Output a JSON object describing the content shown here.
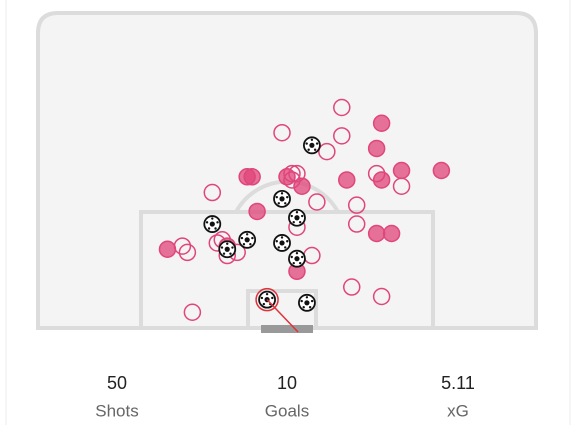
{
  "chart_data": {
    "type": "shotmap",
    "xlim": [
      0,
      100
    ],
    "ylim": [
      0,
      100
    ],
    "series": [
      {
        "style": "hollow",
        "color": "#e0457b",
        "points": [
          {
            "x": 61,
            "y": 70
          },
          {
            "x": 49,
            "y": 62
          },
          {
            "x": 61,
            "y": 61
          },
          {
            "x": 58,
            "y": 56
          },
          {
            "x": 51,
            "y": 49
          },
          {
            "x": 52,
            "y": 49
          },
          {
            "x": 51,
            "y": 47
          },
          {
            "x": 35,
            "y": 43
          },
          {
            "x": 56,
            "y": 40
          },
          {
            "x": 64,
            "y": 39
          },
          {
            "x": 64,
            "y": 33
          },
          {
            "x": 52,
            "y": 32
          },
          {
            "x": 29,
            "y": 26
          },
          {
            "x": 30,
            "y": 24
          },
          {
            "x": 36,
            "y": 27
          },
          {
            "x": 37,
            "y": 28
          },
          {
            "x": 38,
            "y": 23
          },
          {
            "x": 55,
            "y": 23
          },
          {
            "x": 73,
            "y": 45
          },
          {
            "x": 68,
            "y": 49
          },
          {
            "x": 63,
            "y": 13
          },
          {
            "x": 69,
            "y": 10
          },
          {
            "x": 31,
            "y": 5
          },
          {
            "x": 40,
            "y": 24
          }
        ]
      },
      {
        "style": "filled",
        "color": "#e0457b",
        "points": [
          {
            "x": 69,
            "y": 65
          },
          {
            "x": 68,
            "y": 57
          },
          {
            "x": 73,
            "y": 50
          },
          {
            "x": 81,
            "y": 50
          },
          {
            "x": 62,
            "y": 47
          },
          {
            "x": 69,
            "y": 47
          },
          {
            "x": 42,
            "y": 48
          },
          {
            "x": 43,
            "y": 48
          },
          {
            "x": 53,
            "y": 45
          },
          {
            "x": 44,
            "y": 37
          },
          {
            "x": 68,
            "y": 30
          },
          {
            "x": 71,
            "y": 30
          },
          {
            "x": 26,
            "y": 25
          },
          {
            "x": 52,
            "y": 18
          },
          {
            "x": 50,
            "y": 48
          },
          {
            "x": 38,
            "y": 26
          }
        ]
      },
      {
        "style": "ball",
        "color": "#111111",
        "points": [
          {
            "x": 55,
            "y": 58
          },
          {
            "x": 49,
            "y": 41
          },
          {
            "x": 35,
            "y": 33
          },
          {
            "x": 52,
            "y": 35
          },
          {
            "x": 42,
            "y": 28
          },
          {
            "x": 38,
            "y": 25
          },
          {
            "x": 49,
            "y": 27
          },
          {
            "x": 52,
            "y": 22
          },
          {
            "x": 46,
            "y": 9
          },
          {
            "x": 54,
            "y": 8
          }
        ]
      }
    ],
    "highlight_color": "#e0303a"
  },
  "stats": [
    {
      "value": 50,
      "label": "Shots"
    },
    {
      "value": 10,
      "label": "Goals"
    },
    {
      "value": 5.11,
      "label": "xG"
    }
  ]
}
